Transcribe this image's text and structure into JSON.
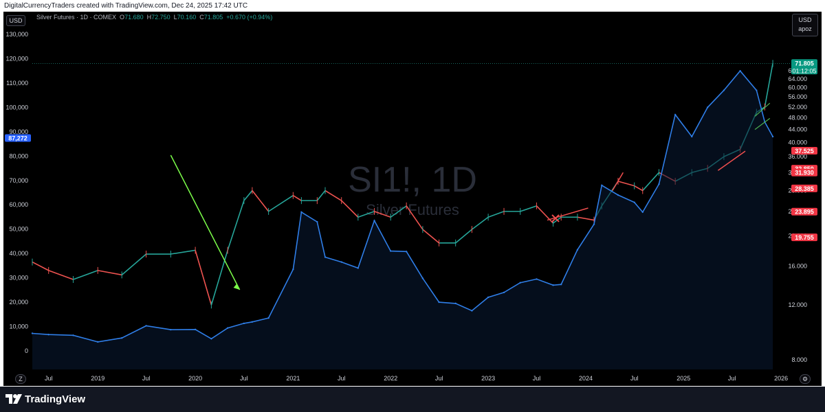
{
  "header": {
    "text": "DigitalCurrencyTraders created with TradingView.com, Dec 24, 2025 17:42 UTC"
  },
  "legend": {
    "symbol": "Silver Futures · 1D · COMEX",
    "open_label": "O",
    "open": "71.680",
    "high_label": "H",
    "high": "72.750",
    "low_label": "L",
    "low": "70.160",
    "close_label": "C",
    "close": "71.805",
    "change": "+0.670 (+0.94%)"
  },
  "buttons": {
    "left_currency": "USD",
    "right_currency": "USD",
    "right_sub": "apoz",
    "scale_mode": "Z"
  },
  "watermark": {
    "symbol": "SI1!, 1D",
    "name": "Silver Futures"
  },
  "footer": {
    "brand": "TradingView"
  },
  "colors": {
    "background": "#000000",
    "blue_line": "#2f7ee8",
    "up_candle": "#26a69a",
    "down_candle": "#ef5350",
    "green_arrow": "#7cff4a",
    "red_line": "#ef4e4e",
    "green_tag": "#089981",
    "red_tag": "#f23645",
    "blue_tag": "#2962ff"
  },
  "chart_data": {
    "type": "line",
    "title": "",
    "x": [
      "2018-05",
      "2018-07",
      "2018-10",
      "2019-01",
      "2019-04",
      "2019-07",
      "2019-10",
      "2020-01",
      "2020-03",
      "2020-05",
      "2020-07",
      "2020-08",
      "2020-10",
      "2021-01",
      "2021-02",
      "2021-04",
      "2021-05",
      "2021-07",
      "2021-09",
      "2021-11",
      "2022-01",
      "2022-03",
      "2022-05",
      "2022-07",
      "2022-09",
      "2022-11",
      "2023-01",
      "2023-03",
      "2023-05",
      "2023-07",
      "2023-09",
      "2023-10",
      "2023-12",
      "2024-02",
      "2024-03",
      "2024-05",
      "2024-07",
      "2024-08",
      "2024-10",
      "2024-12",
      "2025-02",
      "2025-04",
      "2025-06",
      "2025-08",
      "2025-10",
      "2025-11",
      "2025-12"
    ],
    "series": [
      {
        "axis": "left",
        "values": [
          7200,
          6700,
          6400,
          3700,
          5300,
          10300,
          8700,
          8800,
          5000,
          9400,
          11300,
          11900,
          13500,
          33500,
          57000,
          53000,
          38500,
          36500,
          34000,
          53500,
          41000,
          40800,
          29800,
          20000,
          19500,
          16500,
          22000,
          24000,
          28000,
          29500,
          27000,
          27300,
          41500,
          52000,
          68000,
          64000,
          61000,
          57000,
          68500,
          97000,
          88000,
          100000,
          107000,
          115000,
          107000,
          94000,
          88000
        ]
      },
      {
        "axis": "right",
        "values": [
          16.5,
          15.5,
          14.5,
          15.5,
          15,
          17.5,
          17.5,
          18,
          12,
          18,
          26,
          28,
          24,
          27,
          26,
          26,
          28,
          26,
          23,
          24,
          23,
          25,
          21,
          19,
          19,
          21,
          23,
          24,
          24,
          25,
          22,
          23,
          23,
          22.5,
          25,
          30,
          29,
          28,
          32,
          30,
          32,
          33,
          36,
          38,
          50,
          52,
          71.8
        ]
      }
    ],
    "left_axis": {
      "ticks": [
        "0",
        "10,000",
        "20,000",
        "30,000",
        "40,000",
        "50,000",
        "60,000",
        "70,000",
        "80,000",
        "90,000",
        "100,000",
        "110,000",
        "120,000",
        "130,000"
      ],
      "ylim": [
        0,
        130000
      ]
    },
    "right_axis": {
      "ticks": [
        "8.000",
        "12.000",
        "16.000",
        "20.000",
        "24.000",
        "28.000",
        "32.000",
        "36.000",
        "40.000",
        "44.000",
        "48.000",
        "52.000",
        "56.000",
        "60.000",
        "64.000",
        "68.000"
      ],
      "scale": "log",
      "ylim": [
        8,
        76
      ]
    },
    "x_ticks": [
      "Jul",
      "2019",
      "Jul",
      "2020",
      "Jul",
      "2021",
      "Jul",
      "2022",
      "Jul",
      "2023",
      "Jul",
      "2024",
      "Jul",
      "2025",
      "Jul",
      "2026"
    ],
    "price_tags": [
      {
        "value": "71.805",
        "sub": "01:12:05",
        "color": "green"
      },
      {
        "value": "37.525",
        "color": "red"
      },
      {
        "value": "32.850",
        "color": "red"
      },
      {
        "value": "31.930",
        "color": "red"
      },
      {
        "value": "28.385",
        "color": "red"
      },
      {
        "value": "23.895",
        "color": "red"
      },
      {
        "value": "19.755",
        "color": "red"
      }
    ],
    "left_tag": {
      "value": "87,272",
      "color": "blue"
    },
    "grid": false,
    "legend_position": "top-left"
  }
}
